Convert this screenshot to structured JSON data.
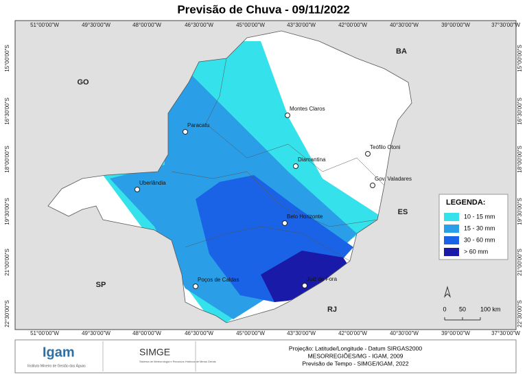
{
  "title": "Previsão de Chuva - 09/11/2022",
  "lon_labels": [
    "51°00'00\"W",
    "49°30'00\"W",
    "48°00'00\"W",
    "46°30'00\"W",
    "45°00'00\"W",
    "43°30'00\"W",
    "42°00'00\"W",
    "40°30'00\"W",
    "39°00'00\"W",
    "37°30'00\"W"
  ],
  "lat_labels": [
    "15°00'00\"S",
    "16°30'00\"S",
    "18°00'00\"S",
    "19°30'00\"S",
    "21°00'00\"S",
    "22°30'00\"S"
  ],
  "states": [
    "GO",
    "BA",
    "ES",
    "SP",
    "RJ"
  ],
  "cities": [
    "Montes Claros",
    "Paracatu",
    "Teófilo Otoni",
    "Diamantina",
    "Uberlândia",
    "Gov. Valadares",
    "Belo Horizonte",
    "Poços de Caldas",
    "Juiz de Fora"
  ],
  "legend": {
    "title": "LEGENDA:",
    "items": [
      {
        "label": "10 - 15 mm",
        "color": "#35e1ea"
      },
      {
        "label": "15 - 30 mm",
        "color": "#2a9fe8"
      },
      {
        "label": "30 - 60 mm",
        "color": "#1a63e6"
      },
      {
        "label": "> 60 mm",
        "color": "#1a1aa8"
      }
    ]
  },
  "scale": [
    "0",
    "50",
    "100 km"
  ],
  "footer": {
    "logo1": "Igam",
    "logo1_sub": "Instituto Mineiro de Gestão das Águas",
    "logo2": "SIMGE",
    "logo2_sub": "Sistema de Meteorologia e Recursos Hídricos de Minas Gerais",
    "lines": [
      "Projeção: Latitude/Longitude - Datum SIRGAS2000",
      "MESORREGIÕES/MG - IGAM, 2009",
      "Previsão de Tempo - SIMGE/IGAM, 2022"
    ]
  }
}
